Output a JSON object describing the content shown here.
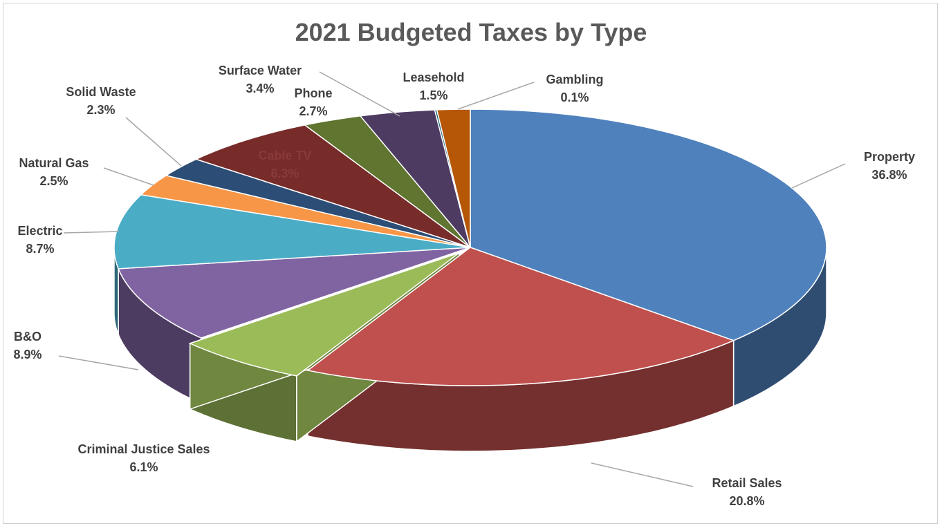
{
  "chart_data": {
    "type": "pie",
    "title": "2021 Budgeted Taxes by Type",
    "slices": [
      {
        "name": "Property",
        "value": 36.8,
        "label": "36.8%",
        "color": "#4f81bd"
      },
      {
        "name": "Retail Sales",
        "value": 20.8,
        "label": "20.8%",
        "color": "#c0504d"
      },
      {
        "name": "Criminal Justice Sales",
        "value": 6.1,
        "label": "6.1%",
        "color": "#9bbb59"
      },
      {
        "name": "B&O",
        "value": 8.9,
        "label": "8.9%",
        "color": "#8064a2"
      },
      {
        "name": "Electric",
        "value": 8.7,
        "label": "8.7%",
        "color": "#4bacc6"
      },
      {
        "name": "Natural Gas",
        "value": 2.5,
        "label": "2.5%",
        "color": "#f79646"
      },
      {
        "name": "Solid Waste",
        "value": 2.3,
        "label": "2.3%",
        "color": "#2c4d75"
      },
      {
        "name": "Cable TV",
        "value": 6.3,
        "label": "6.3%",
        "color": "#772c2a"
      },
      {
        "name": "Phone",
        "value": 2.7,
        "label": "2.7%",
        "color": "#5f7530"
      },
      {
        "name": "Surface Water",
        "value": 3.4,
        "label": "3.4%",
        "color": "#4d3b62"
      },
      {
        "name": "Gambling",
        "value": 0.1,
        "label": "0.1%",
        "color": "#276a7c"
      },
      {
        "name": "Leasehold",
        "value": 1.5,
        "label": "1.5%",
        "color": "#b65708"
      }
    ],
    "style": "3d-exploded-pie",
    "legend": "none"
  }
}
